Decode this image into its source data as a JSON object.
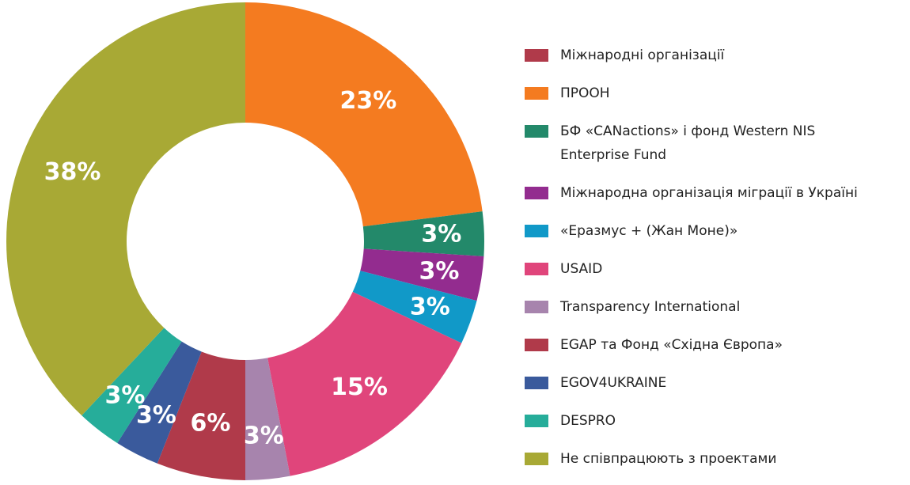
{
  "chart_data": {
    "type": "pie",
    "categories": [
      "Міжнародні організації",
      "ПРООН",
      "БФ «CANactions» і фонд Western NIS Enterprise Fund",
      "Міжнародна організація міграції в Україні",
      "«Еразмус + (Жан Моне)»",
      "USAID",
      "Transparency International",
      "EGAP та Фонд «Східна Європа»",
      "EGOV4UKRAINE",
      "DESPRO",
      "Не співпрацюють з проектами"
    ],
    "values": [
      0,
      23,
      3,
      3,
      3,
      15,
      3,
      6,
      3,
      3,
      38
    ],
    "value_labels": [
      null,
      "23%",
      "3%",
      "3%",
      "3%",
      "15%",
      "3%",
      "6%",
      "3%",
      "3%",
      "38%"
    ],
    "colors": [
      "#b03a4a",
      "#f47b20",
      "#23896a",
      "#932c8f",
      "#1199c8",
      "#e0457b",
      "#a784ad",
      "#b03a4a",
      "#3a5a9c",
      "#26ad9a",
      "#a8a935"
    ],
    "donut": true
  }
}
